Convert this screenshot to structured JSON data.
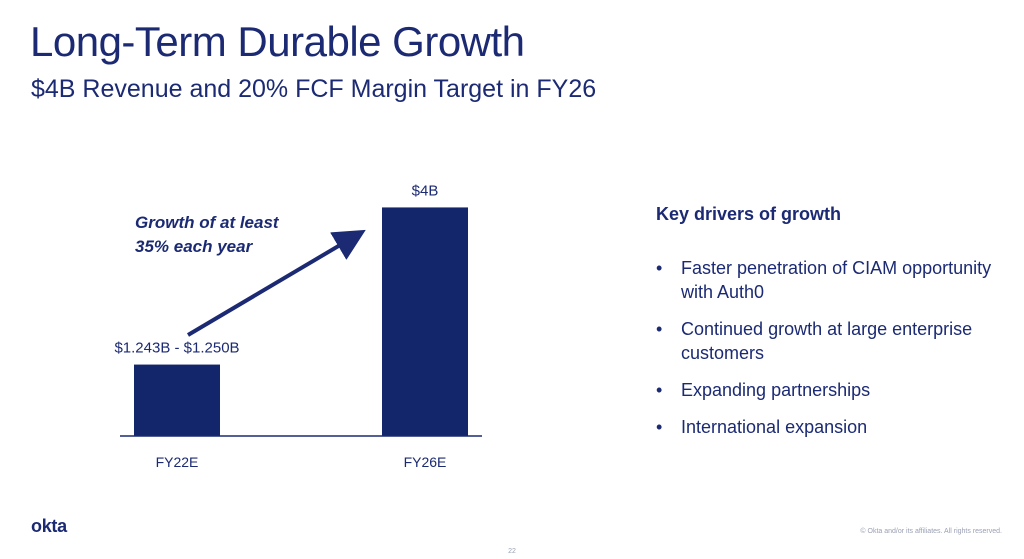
{
  "header": {
    "title": "Long-Term Durable Growth",
    "subtitle": "$4B Revenue and 20% FCF Margin Target in FY26"
  },
  "chart_data": {
    "type": "bar",
    "categories": [
      "FY22E",
      "FY26E"
    ],
    "values": [
      1.25,
      4.0
    ],
    "value_labels": [
      "$1.243B - $1.250B",
      "$4B"
    ],
    "unit": "$B",
    "ylim": [
      0,
      4.2
    ],
    "grid": false,
    "annotation": {
      "line1": "Growth of at least",
      "line2": "35% each year",
      "arrow": "from FY22E bar to FY26E bar"
    },
    "colors": {
      "bar": "#13256b",
      "axis": "#1b2a73",
      "text": "#1b2a73"
    }
  },
  "drivers": {
    "title": "Key drivers of growth",
    "bullet": "•",
    "items": [
      "Faster penetration of CIAM opportunity with Auth0",
      "Continued growth at large enterprise customers",
      "Expanding partnerships",
      "International expansion"
    ]
  },
  "footer": {
    "logo": "okta",
    "copyright": "© Okta and/or its affiliates. All rights reserved.",
    "page_number": "22"
  }
}
